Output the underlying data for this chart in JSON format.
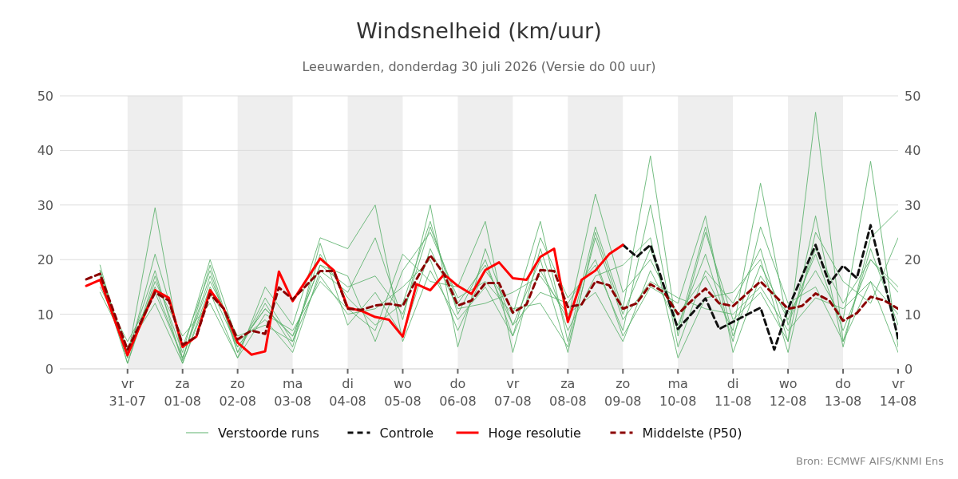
{
  "chart_data": {
    "type": "line",
    "title": "Windsnelheid (km/uur)",
    "subtitle": "Leeuwarden, donderdag 30 juli 2026 (Versie do 00 uur)",
    "xlim": [
      "2026-07-29T18:30",
      "2026-08-14T00:00"
    ],
    "xticks": [
      {
        "value": "2026-07-31",
        "label": "vr\n31-07"
      },
      {
        "value": "2026-08-01",
        "label": "za\n01-08"
      },
      {
        "value": "2026-08-02",
        "label": "zo\n02-08"
      },
      {
        "value": "2026-08-03",
        "label": "ma\n03-08"
      },
      {
        "value": "2026-08-04",
        "label": "di\n04-08"
      },
      {
        "value": "2026-08-05",
        "label": "wo\n05-08"
      },
      {
        "value": "2026-08-06",
        "label": "do\n06-08"
      },
      {
        "value": "2026-08-07",
        "label": "vr\n07-08"
      },
      {
        "value": "2026-08-08",
        "label": "za\n08-08"
      },
      {
        "value": "2026-08-09",
        "label": "zo\n09-08"
      },
      {
        "value": "2026-08-10",
        "label": "ma\n10-08"
      },
      {
        "value": "2026-08-11",
        "label": "di\n11-08"
      },
      {
        "value": "2026-08-12",
        "label": "wo\n12-08"
      },
      {
        "value": "2026-08-13",
        "label": "do\n13-08"
      },
      {
        "value": "2026-08-14",
        "label": "vr\n14-08"
      }
    ],
    "ylim": [
      0,
      50
    ],
    "yticks": [
      0,
      10,
      20,
      30,
      40,
      50
    ],
    "y2lim": [
      0,
      50
    ],
    "y2ticks": [
      0,
      10,
      20,
      30,
      40,
      50
    ],
    "grid": "y",
    "legend": "bottom",
    "bands": [
      {
        "axis": "x",
        "from": "2026-07-31",
        "to": "2026-08-01",
        "color": "#eeeeee"
      },
      {
        "axis": "x",
        "from": "2026-08-02",
        "to": "2026-08-03",
        "color": "#eeeeee"
      },
      {
        "axis": "x",
        "from": "2026-08-04",
        "to": "2026-08-05",
        "color": "#eeeeee"
      },
      {
        "axis": "x",
        "from": "2026-08-06",
        "to": "2026-08-07",
        "color": "#eeeeee"
      },
      {
        "axis": "x",
        "from": "2026-08-08",
        "to": "2026-08-09",
        "color": "#eeeeee"
      },
      {
        "axis": "x",
        "from": "2026-08-10",
        "to": "2026-08-11",
        "color": "#eeeeee"
      },
      {
        "axis": "x",
        "from": "2026-08-12",
        "to": "2026-08-13",
        "color": "#eeeeee"
      }
    ],
    "x": [
      "2026-07-30T12:00",
      "2026-07-31T00:00",
      "2026-07-31T12:00",
      "2026-08-01T00:00",
      "2026-08-01T12:00",
      "2026-08-02T00:00",
      "2026-08-02T12:00",
      "2026-08-03T00:00",
      "2026-08-03T12:00",
      "2026-08-04T00:00",
      "2026-08-04T12:00",
      "2026-08-05T00:00",
      "2026-08-05T12:00",
      "2026-08-06T00:00",
      "2026-08-06T12:00",
      "2026-08-07T00:00",
      "2026-08-07T12:00",
      "2026-08-08T00:00",
      "2026-08-08T12:00",
      "2026-08-09T00:00",
      "2026-08-09T12:00",
      "2026-08-10T00:00",
      "2026-08-10T12:00",
      "2026-08-11T00:00",
      "2026-08-11T12:00",
      "2026-08-12T00:00",
      "2026-08-12T12:00",
      "2026-08-13T00:00",
      "2026-08-13T12:00",
      "2026-08-14T00:00"
    ],
    "series": [
      {
        "name": "Verstoorde runs",
        "color": "#5cb26c",
        "line_style": "solid",
        "values": [
          18,
          2,
          29.5,
          1.5,
          19,
          3,
          13,
          5,
          21,
          13,
          8,
          12,
          27,
          10,
          20,
          6,
          18,
          9,
          32,
          14,
          20,
          10,
          17,
          7,
          34,
          8,
          22,
          12,
          20,
          14
        ]
      },
      {
        "color": "#5cb26c",
        "line_style": "solid",
        "values": [
          17,
          3,
          15,
          2,
          17,
          4,
          11,
          6,
          19,
          17,
          5,
          18,
          25,
          13,
          16,
          10,
          27,
          5,
          26,
          11,
          39,
          6,
          25,
          9,
          14,
          5,
          47,
          5,
          16,
          10
        ]
      },
      {
        "color": "#5cb26c",
        "line_style": "solid",
        "values": [
          19,
          1,
          17,
          3,
          20,
          5,
          9,
          3,
          18,
          14,
          24,
          9,
          30,
          4,
          22,
          8,
          14,
          12,
          20,
          6,
          15,
          12,
          28,
          3,
          17,
          10,
          18,
          9,
          38,
          4
        ]
      },
      {
        "color": "#5cb26c",
        "line_style": "solid",
        "values": [
          14,
          4,
          12,
          1,
          14,
          2,
          10,
          7,
          16,
          11,
          7,
          21,
          16,
          15,
          27,
          3,
          22,
          7,
          17,
          19,
          24,
          2,
          13,
          14,
          20,
          3,
          25,
          16,
          12,
          24
        ]
      },
      {
        "color": "#5cb26c",
        "line_style": "solid",
        "values": [
          18,
          2,
          21,
          4,
          18,
          3,
          12,
          4,
          23,
          8,
          14,
          6,
          22,
          11,
          12,
          14,
          17,
          10,
          14,
          5,
          18,
          8,
          21,
          5,
          26,
          12,
          15,
          5,
          22,
          8
        ]
      },
      {
        "color": "#5cb26c",
        "line_style": "solid",
        "values": [
          15,
          5,
          14,
          2,
          16,
          6,
          8,
          5,
          17,
          10,
          11,
          15,
          20,
          7,
          18,
          11,
          12,
          4,
          24,
          9,
          16,
          13,
          11,
          10,
          15,
          7,
          13,
          11,
          16,
          3
        ]
      },
      {
        "color": "#5cb26c",
        "line_style": "solid",
        "values": [
          17,
          1,
          16,
          6,
          12,
          2,
          15,
          8,
          24,
          22,
          30,
          5,
          18,
          9,
          15,
          6,
          24,
          13,
          19,
          7,
          30,
          4,
          18,
          12,
          22,
          5,
          28,
          4,
          24,
          29
        ]
      },
      {
        "color": "#5cb26c",
        "line_style": "solid",
        "values": [
          18,
          3,
          18,
          1,
          15,
          4,
          11,
          6,
          19,
          15,
          17,
          10,
          26,
          12,
          19,
          8,
          20,
          3,
          25,
          10,
          22,
          7,
          26,
          6,
          19,
          9,
          21,
          7,
          20,
          15
        ]
      },
      {
        "name": "Controle",
        "color": "#111111",
        "line_style": "dashed",
        "x": [
          "2026-08-09T00:00",
          "2026-08-09T06:00",
          "2026-08-09T12:00",
          "2026-08-10T00:00",
          "2026-08-10T12:00",
          "2026-08-10T18:00",
          "2026-08-11T00:00",
          "2026-08-11T12:00",
          "2026-08-11T18:00",
          "2026-08-12T00:00",
          "2026-08-12T12:00",
          "2026-08-12T18:00",
          "2026-08-13T00:00",
          "2026-08-13T06:00",
          "2026-08-13T12:00",
          "2026-08-14T00:00"
        ],
        "values": [
          22.7,
          20.5,
          22.7,
          7.3,
          12.9,
          7.3,
          8.6,
          11.2,
          3.5,
          11,
          22.7,
          15.6,
          18.9,
          16.6,
          26.3,
          5.6
        ]
      },
      {
        "name": "Hoge resolutie",
        "color": "#ff0000",
        "line_style": "solid",
        "x": [
          "2026-07-30T06:00",
          "2026-07-30T12:00",
          "2026-07-31T00:00",
          "2026-07-31T12:00",
          "2026-07-31T18:00",
          "2026-08-01T00:00",
          "2026-08-01T06:00",
          "2026-08-01T12:00",
          "2026-08-01T18:00",
          "2026-08-02T00:00",
          "2026-08-02T06:00",
          "2026-08-02T12:00",
          "2026-08-02T18:00",
          "2026-08-03T00:00",
          "2026-08-03T12:00",
          "2026-08-03T18:00",
          "2026-08-04T00:00",
          "2026-08-04T06:00",
          "2026-08-04T12:00",
          "2026-08-04T18:00",
          "2026-08-05T00:00",
          "2026-08-05T06:00",
          "2026-08-05T12:00",
          "2026-08-05T18:00",
          "2026-08-06T00:00",
          "2026-08-06T06:00",
          "2026-08-06T12:00",
          "2026-08-06T18:00",
          "2026-08-07T00:00",
          "2026-08-07T06:00",
          "2026-08-07T12:00",
          "2026-08-07T18:00",
          "2026-08-08T00:00",
          "2026-08-08T06:00",
          "2026-08-08T12:00",
          "2026-08-08T18:00",
          "2026-08-09T00:00"
        ],
        "values": [
          15.2,
          16.3,
          2.5,
          14.4,
          13,
          4,
          5.9,
          14.4,
          11,
          4.8,
          2.6,
          3.2,
          17.8,
          12.4,
          20.2,
          18,
          11.2,
          10.6,
          9.5,
          9,
          5.9,
          15.5,
          14.4,
          17.3,
          15.2,
          13.7,
          18.1,
          19.5,
          16.6,
          16.3,
          20.5,
          22,
          8.6,
          16.3,
          18,
          21,
          22.7
        ]
      },
      {
        "name": "Middelste (P50)",
        "color": "#8b0000",
        "line_style": "dashed",
        "x": [
          "2026-07-30T06:00",
          "2026-07-30T12:00",
          "2026-07-31T00:00",
          "2026-07-31T12:00",
          "2026-07-31T18:00",
          "2026-08-01T00:00",
          "2026-08-01T06:00",
          "2026-08-01T12:00",
          "2026-08-01T18:00",
          "2026-08-02T00:00",
          "2026-08-02T06:00",
          "2026-08-02T12:00",
          "2026-08-02T18:00",
          "2026-08-03T00:00",
          "2026-08-03T12:00",
          "2026-08-03T18:00",
          "2026-08-04T00:00",
          "2026-08-04T06:00",
          "2026-08-04T12:00",
          "2026-08-04T18:00",
          "2026-08-05T00:00",
          "2026-08-05T06:00",
          "2026-08-05T12:00",
          "2026-08-05T18:00",
          "2026-08-06T00:00",
          "2026-08-06T06:00",
          "2026-08-06T12:00",
          "2026-08-06T18:00",
          "2026-08-07T00:00",
          "2026-08-07T06:00",
          "2026-08-07T12:00",
          "2026-08-07T18:00",
          "2026-08-08T00:00",
          "2026-08-08T06:00",
          "2026-08-08T12:00",
          "2026-08-08T18:00",
          "2026-08-09T00:00",
          "2026-08-09T06:00",
          "2026-08-09T12:00",
          "2026-08-09T18:00",
          "2026-08-10T00:00",
          "2026-08-10T06:00",
          "2026-08-10T12:00",
          "2026-08-10T18:00",
          "2026-08-11T00:00",
          "2026-08-11T12:00",
          "2026-08-12T00:00",
          "2026-08-12T06:00",
          "2026-08-12T12:00",
          "2026-08-12T18:00",
          "2026-08-13T00:00",
          "2026-08-13T06:00",
          "2026-08-13T12:00",
          "2026-08-13T18:00",
          "2026-08-14T00:00"
        ],
        "values": [
          16.4,
          17.4,
          3.5,
          14,
          12.5,
          4.4,
          5.9,
          13.7,
          11,
          5.4,
          7,
          6.4,
          14.9,
          12.7,
          17.9,
          17.9,
          11,
          10.8,
          11.6,
          11.9,
          11.5,
          16.4,
          20.8,
          17.4,
          11.6,
          12.5,
          15.7,
          15.7,
          10.3,
          11.8,
          18.1,
          17.9,
          11.3,
          11.8,
          16,
          15.3,
          11,
          12,
          15.5,
          14,
          10,
          12.5,
          14.7,
          12,
          11.5,
          16,
          11,
          11.5,
          13.8,
          12.5,
          8.8,
          10.2,
          13.2,
          12.5,
          11
        ]
      }
    ],
    "annotations": [
      "Bron: ECMWF AIFS/KNMI Ens"
    ]
  }
}
